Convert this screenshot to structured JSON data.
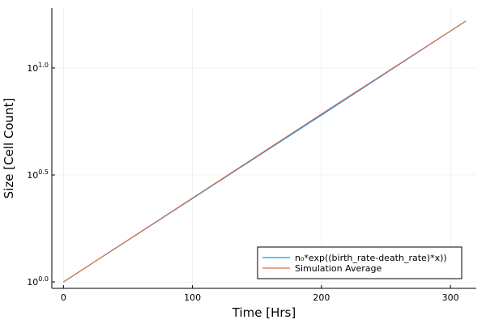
{
  "chart_data": {
    "type": "line",
    "xlabel": "Time [Hrs]",
    "ylabel": "Size [Cell Count]",
    "y_scale": "log10",
    "xlim": [
      -9,
      320
    ],
    "ylim": [
      -0.03,
      1.28
    ],
    "x_ticks": [
      {
        "value": 0,
        "label": "0"
      },
      {
        "value": 100,
        "label": "100"
      },
      {
        "value": 200,
        "label": "200"
      },
      {
        "value": 300,
        "label": "300"
      }
    ],
    "y_ticks": [
      {
        "value": 0.0,
        "base": "10",
        "exp": "0.0"
      },
      {
        "value": 0.5,
        "base": "10",
        "exp": "0.5"
      },
      {
        "value": 1.0,
        "base": "10",
        "exp": "1.0"
      }
    ],
    "grid": true,
    "legend_position": "bottom-right",
    "series": [
      {
        "name": "n₀*exp((birth_rate-death_rate)*x))",
        "color": "#009AFA",
        "x": [
          0,
          100,
          200,
          312
        ],
        "log10_y": [
          0.0,
          0.39,
          0.78,
          1.22
        ]
      },
      {
        "name": "Simulation Average",
        "color": "#E26F46",
        "x": [
          0,
          100,
          200,
          312
        ],
        "log10_y": [
          0.0,
          0.392,
          0.785,
          1.22
        ]
      }
    ]
  }
}
